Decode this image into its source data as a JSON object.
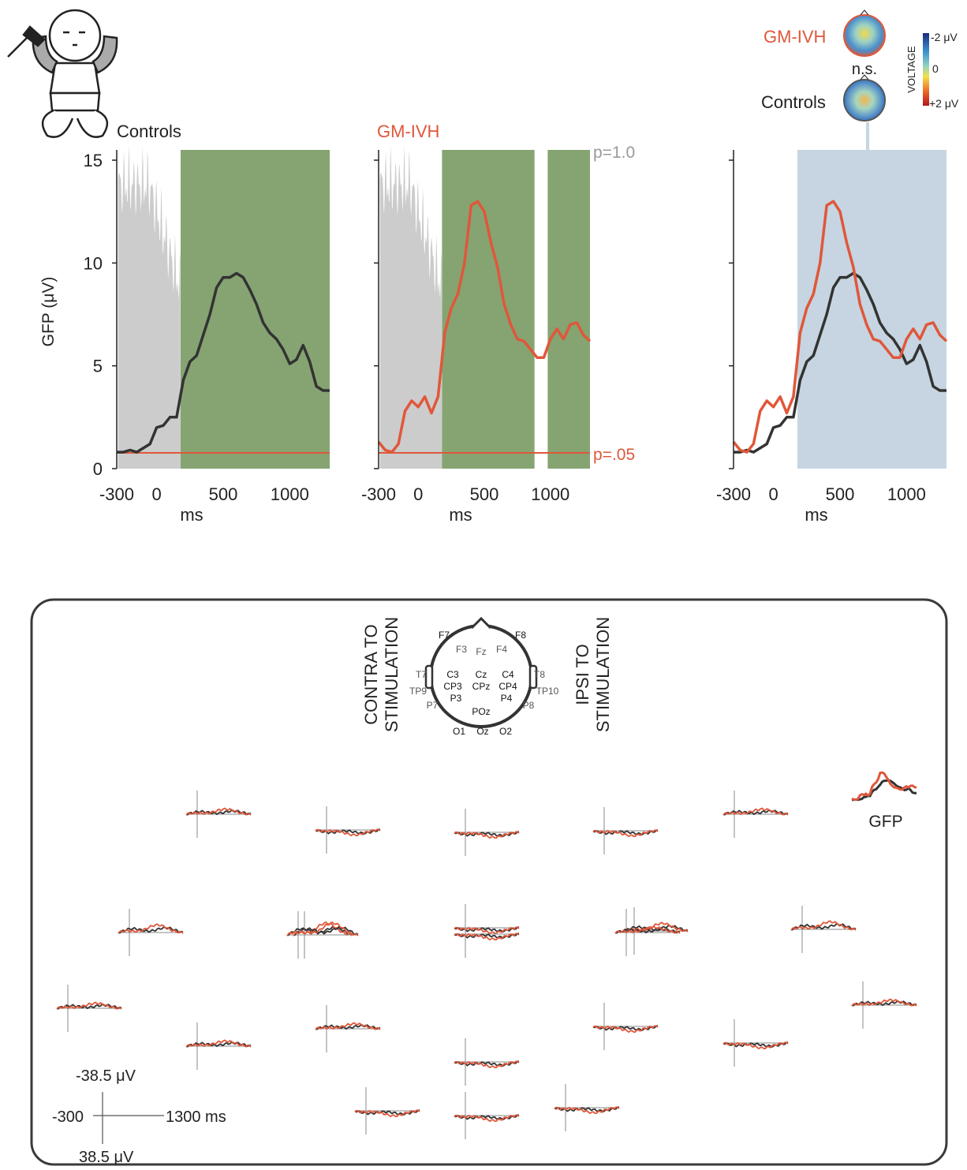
{
  "colors": {
    "controls": "#333333",
    "gmivh": "#e0573a",
    "sig_fill": "#85a472",
    "pval_fill": "#cccccc",
    "window_fill": "#c6d5e1",
    "p_gray": "#999999",
    "box_stroke": "#3a3a3a"
  },
  "top": {
    "panel1_title": "Controls",
    "panel2_title": "GM-IVH",
    "ylabel": "GFP (μV)",
    "xlabel": "ms",
    "p_upper_label": "p=1.0",
    "p_lower_label": "p=.05",
    "topo_gmivh_label": "GM-IVH",
    "topo_controls_label": "Controls",
    "topo_ns": "n.s.",
    "colorbar_title": "VOLTAGE",
    "colorbar_top": "-2 μV",
    "colorbar_mid": "0",
    "colorbar_bottom": "+2 μV"
  },
  "chart_data": [
    {
      "type": "line",
      "title": "Controls",
      "xlabel": "ms",
      "ylabel": "GFP (μV)",
      "xlim": [
        -300,
        1300
      ],
      "ylim": [
        0,
        15.5
      ],
      "xticks": [
        "-300",
        "0",
        "500",
        "1000"
      ],
      "yticks": [
        "0",
        "5",
        "10",
        "15"
      ],
      "significant_window_ms": [
        180,
        1300
      ],
      "p_threshold_value": 0.05,
      "series": [
        {
          "name": "Controls",
          "color": "#333333",
          "x": [
            -300,
            -250,
            -200,
            -150,
            -100,
            -50,
            0,
            50,
            100,
            150,
            200,
            250,
            300,
            350,
            400,
            450,
            500,
            550,
            600,
            650,
            700,
            750,
            800,
            850,
            900,
            950,
            1000,
            1050,
            1100,
            1150,
            1200,
            1250,
            1300
          ],
          "y": [
            0.8,
            0.8,
            0.9,
            0.8,
            1.0,
            1.2,
            2.0,
            2.1,
            2.5,
            2.5,
            4.3,
            5.2,
            5.5,
            6.5,
            7.5,
            8.8,
            9.3,
            9.3,
            9.5,
            9.3,
            8.7,
            8.0,
            7.1,
            6.6,
            6.3,
            5.8,
            5.1,
            5.3,
            6.0,
            5.2,
            4.0,
            3.8,
            3.8
          ]
        }
      ]
    },
    {
      "type": "line",
      "title": "GM-IVH",
      "xlabel": "ms",
      "xlim": [
        -300,
        1300
      ],
      "ylim": [
        0,
        15.5
      ],
      "xticks": [
        "-300",
        "0",
        "500",
        "1000"
      ],
      "significant_windows_ms": [
        [
          180,
          880
        ],
        [
          980,
          1300
        ]
      ],
      "p_threshold_value": 0.05,
      "series": [
        {
          "name": "GM-IVH",
          "color": "#e0573a",
          "x": [
            -300,
            -250,
            -200,
            -150,
            -100,
            -50,
            0,
            50,
            100,
            150,
            200,
            250,
            300,
            350,
            400,
            450,
            500,
            550,
            600,
            650,
            700,
            750,
            800,
            850,
            900,
            950,
            1000,
            1050,
            1100,
            1150,
            1200,
            1250,
            1300
          ],
          "y": [
            1.3,
            0.9,
            0.8,
            1.2,
            2.8,
            3.3,
            3.0,
            3.5,
            2.7,
            3.5,
            6.6,
            7.8,
            8.5,
            10.0,
            12.8,
            13.0,
            12.5,
            11.0,
            9.8,
            8.0,
            7.0,
            6.3,
            6.2,
            5.8,
            5.4,
            5.4,
            6.3,
            6.8,
            6.3,
            7.0,
            7.1,
            6.5,
            6.2
          ]
        }
      ]
    },
    {
      "type": "line",
      "title": "",
      "xlabel": "ms",
      "xlim": [
        -300,
        1300
      ],
      "ylim": [
        0,
        15.5
      ],
      "xticks": [
        "-300",
        "0",
        "500",
        "1000"
      ],
      "window_ms": [
        180,
        1300
      ],
      "series": [
        {
          "name": "Controls",
          "color": "#333333",
          "x": [
            -300,
            -250,
            -200,
            -150,
            -100,
            -50,
            0,
            50,
            100,
            150,
            200,
            250,
            300,
            350,
            400,
            450,
            500,
            550,
            600,
            650,
            700,
            750,
            800,
            850,
            900,
            950,
            1000,
            1050,
            1100,
            1150,
            1200,
            1250,
            1300
          ],
          "y": [
            0.8,
            0.8,
            0.9,
            0.8,
            1.0,
            1.2,
            2.0,
            2.1,
            2.5,
            2.5,
            4.3,
            5.2,
            5.5,
            6.5,
            7.5,
            8.8,
            9.3,
            9.3,
            9.5,
            9.3,
            8.7,
            8.0,
            7.1,
            6.6,
            6.3,
            5.8,
            5.1,
            5.3,
            6.0,
            5.2,
            4.0,
            3.8,
            3.8
          ]
        },
        {
          "name": "GM-IVH",
          "color": "#e0573a",
          "x": [
            -300,
            -250,
            -200,
            -150,
            -100,
            -50,
            0,
            50,
            100,
            150,
            200,
            250,
            300,
            350,
            400,
            450,
            500,
            550,
            600,
            650,
            700,
            750,
            800,
            850,
            900,
            950,
            1000,
            1050,
            1100,
            1150,
            1200,
            1250,
            1300
          ],
          "y": [
            1.3,
            0.9,
            0.8,
            1.2,
            2.8,
            3.3,
            3.0,
            3.5,
            2.7,
            3.5,
            6.6,
            7.8,
            8.5,
            10.0,
            12.8,
            13.0,
            12.5,
            11.0,
            9.8,
            8.0,
            7.0,
            6.3,
            6.2,
            5.8,
            5.4,
            5.4,
            6.3,
            6.8,
            6.3,
            7.0,
            7.1,
            6.5,
            6.2
          ]
        }
      ]
    }
  ],
  "bottom": {
    "contra_line1": "CONTRA TO",
    "contra_line2": "STIMULATION",
    "ipsi_line1": "IPSI TO",
    "ipsi_line2": "STIMULATION",
    "gfp_label": "GFP",
    "scale_top": "-38.5 μV",
    "scale_bottom": "38.5 μV",
    "scale_left": "-300",
    "scale_right": "1300 ms",
    "electrodes": [
      {
        "label": "F7",
        "dark": true
      },
      {
        "label": "F8",
        "dark": true
      },
      {
        "label": "F3",
        "dark": false
      },
      {
        "label": "Fz",
        "dark": false
      },
      {
        "label": "F4",
        "dark": false
      },
      {
        "label": "T7",
        "dark": false
      },
      {
        "label": "C3",
        "dark": true
      },
      {
        "label": "Cz",
        "dark": true
      },
      {
        "label": "C4",
        "dark": true
      },
      {
        "label": "T8",
        "dark": false
      },
      {
        "label": "CP3",
        "dark": true
      },
      {
        "label": "CPz",
        "dark": true
      },
      {
        "label": "CP4",
        "dark": true
      },
      {
        "label": "TP9",
        "dark": false
      },
      {
        "label": "P3",
        "dark": true
      },
      {
        "label": "P4",
        "dark": true
      },
      {
        "label": "TP10",
        "dark": false
      },
      {
        "label": "P7",
        "dark": false
      },
      {
        "label": "POz",
        "dark": true
      },
      {
        "label": "P8",
        "dark": false
      },
      {
        "label": "O1",
        "dark": true
      },
      {
        "label": "Oz",
        "dark": true
      },
      {
        "label": "O2",
        "dark": true
      }
    ]
  }
}
